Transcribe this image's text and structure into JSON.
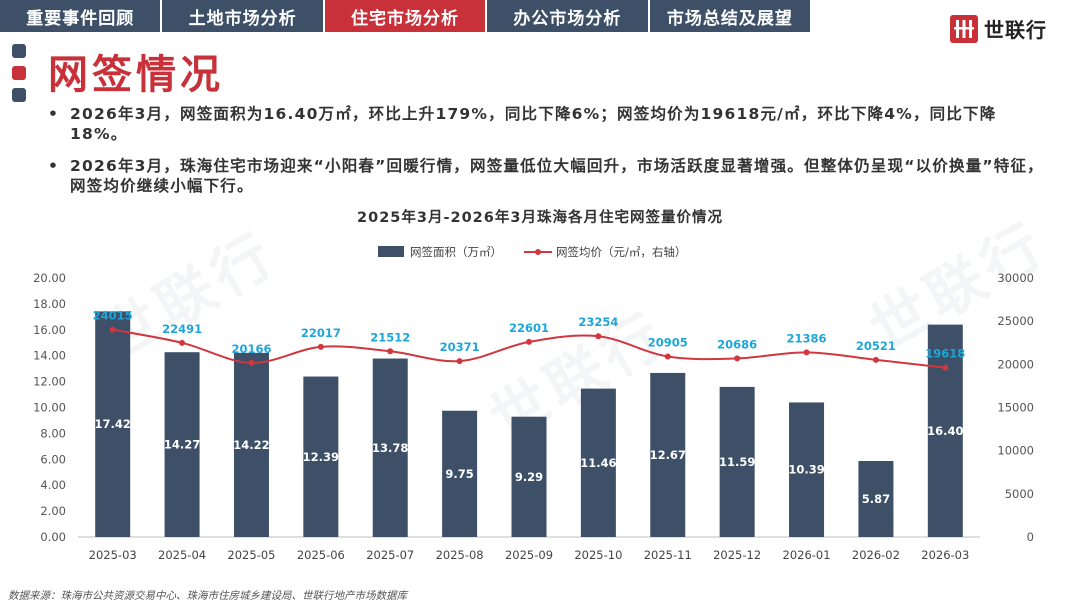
{
  "tabs": [
    {
      "label": "重要事件回顾",
      "active": false
    },
    {
      "label": "土地市场分析",
      "active": false
    },
    {
      "label": "住宅市场分析",
      "active": true
    },
    {
      "label": "办公市场分析",
      "active": false
    },
    {
      "label": "市场总结及展望",
      "active": false
    }
  ],
  "brand": {
    "name": "世联行",
    "watermark": "世联行"
  },
  "page_title": "网签情况",
  "bullets": [
    "2026年3月，网签面积为16.40万㎡，环比上升179%，同比下降6%；网签均价为19618元/㎡，环比下降4%，同比下降18%。",
    "2026年3月，珠海住宅市场迎来“小阳春”回暖行情，网签量低位大幅回升，市场活跃度显著增强。但整体仍呈现“以价换量”特征，网签均价继续小幅下行。"
  ],
  "bullet_symbol": "•",
  "source": "数据来源：珠海市公共资源交易中心、珠海市住房城乡建设局、世联行地产市场数据库",
  "colors": {
    "tab_bg": "#3d5068",
    "accent": "#c8313a",
    "bar": "#3d5068",
    "line": "#d0373f",
    "price_label": "#1ea6d8"
  },
  "chart_data": {
    "type": "bar",
    "title": "2025年3月-2026年3月珠海各月住宅网签量价情况",
    "categories": [
      "2025-03",
      "2025-04",
      "2025-05",
      "2025-06",
      "2025-07",
      "2025-08",
      "2025-09",
      "2025-10",
      "2025-11",
      "2025-12",
      "2026-01",
      "2026-02",
      "2026-03"
    ],
    "series": [
      {
        "name": "网签面积（万㎡）",
        "type": "bar",
        "axis": "left",
        "values": [
          17.42,
          14.27,
          14.22,
          12.39,
          13.78,
          9.75,
          9.29,
          11.46,
          12.67,
          11.59,
          10.39,
          5.87,
          16.4
        ]
      },
      {
        "name": "网签均价（元/㎡，右轴）",
        "type": "line",
        "axis": "right",
        "values": [
          24015,
          22491,
          20166,
          22017,
          21512,
          20371,
          22601,
          23254,
          20905,
          20686,
          21386,
          20521,
          19618
        ]
      }
    ],
    "bar_labels": [
      "17.42",
      "14.27",
      "14.22",
      "12.39",
      "13.78",
      "9.75",
      "9.29",
      "11.46",
      "12.67",
      "11.59",
      "10.39",
      "5.87",
      "16.40"
    ],
    "line_labels": [
      "24015",
      "22491",
      "20166",
      "22017",
      "21512",
      "20371",
      "22601",
      "23254",
      "20905",
      "20686",
      "21386",
      "20521",
      "19618"
    ],
    "ylim_left": [
      0,
      20
    ],
    "yticks_left": [
      "0.00",
      "2.00",
      "4.00",
      "6.00",
      "8.00",
      "10.00",
      "12.00",
      "14.00",
      "16.00",
      "18.00",
      "20.00"
    ],
    "ylim_right": [
      0,
      30000
    ],
    "yticks_right": [
      "0",
      "5000",
      "10000",
      "15000",
      "20000",
      "25000",
      "30000"
    ],
    "legend_position": "top"
  }
}
